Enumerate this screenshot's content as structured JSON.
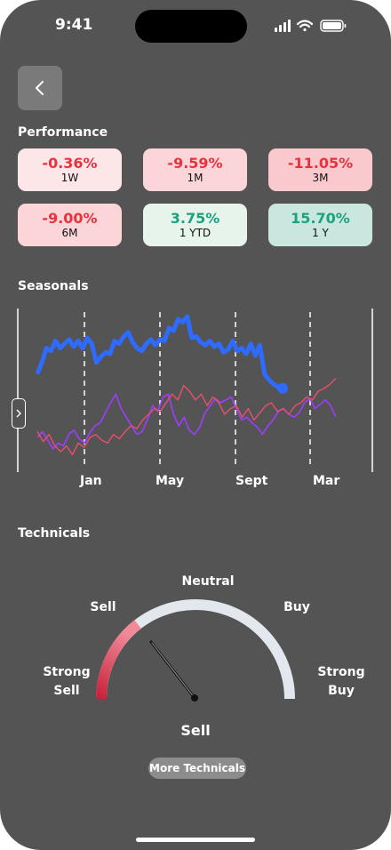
{
  "status_bar": {
    "time": "9:41"
  },
  "performance": {
    "title": "Performance",
    "cards": [
      {
        "value": "-0.36%",
        "label": "1W",
        "tone": "negative"
      },
      {
        "value": "-9.59%",
        "label": "1M",
        "tone": "negative"
      },
      {
        "value": "-11.05%",
        "label": "3M",
        "tone": "negative"
      },
      {
        "value": "-9.00%",
        "label": "6M",
        "tone": "negative"
      },
      {
        "value": "3.75%",
        "label": "1 YTD",
        "tone": "positive"
      },
      {
        "value": "15.70%",
        "label": "1 Y",
        "tone": "positive"
      }
    ]
  },
  "seasonals": {
    "title": "Seasonals",
    "months": [
      "Jan",
      "May",
      "Sept",
      "Mar"
    ]
  },
  "chart_data": {
    "type": "line",
    "title": "Seasonals",
    "xlabel": "",
    "ylabel": "",
    "x_ticks": [
      "Jan",
      "May",
      "Sept",
      "Mar"
    ],
    "grid": "vertical dashed at month ticks",
    "series": [
      {
        "color": "#2f6bff",
        "values": [
          12,
          20,
          30,
          28,
          35,
          30,
          33,
          36,
          31,
          35,
          30,
          37,
          33,
          20,
          24,
          27,
          26,
          35,
          33,
          38,
          41,
          34,
          30,
          28,
          33,
          36,
          32,
          36,
          35,
          44,
          42,
          50,
          48,
          52,
          37,
          38,
          34,
          32,
          35,
          31,
          33,
          27,
          29,
          35,
          28,
          30,
          26,
          33,
          25,
          32,
          12,
          8,
          5,
          3,
          2
        ]
      },
      {
        "color": "#a03cff",
        "values": [
          -32,
          -28,
          -34,
          -40,
          -36,
          -38,
          -30,
          -27,
          -33,
          -36,
          -29,
          -24,
          -22,
          -15,
          -8,
          -2,
          -12,
          -18,
          -24,
          -30,
          -28,
          -20,
          -10,
          -14,
          -4,
          -2,
          -16,
          -24,
          -18,
          -27,
          -30,
          -25,
          -15,
          -10,
          -5,
          -8,
          -6,
          -4,
          -12,
          -20,
          -18,
          -22,
          -25,
          -30,
          -24,
          -20,
          -14,
          -12,
          -16,
          -18,
          -15,
          -8,
          -5,
          -12,
          -9,
          -6,
          -10,
          -18
        ]
      },
      {
        "color": "#e8506e",
        "values": [
          -28,
          -35,
          -30,
          -38,
          -42,
          -38,
          -44,
          -36,
          -39,
          -32,
          -30,
          -34,
          -36,
          -30,
          -33,
          -28,
          -24,
          -26,
          -20,
          -16,
          -12,
          -14,
          -8,
          -2,
          -6,
          4,
          0,
          -6,
          -2,
          -10,
          -4,
          -8,
          -16,
          -12,
          -10,
          -18,
          -12,
          -20,
          -15,
          -10,
          -8,
          -14,
          -12,
          -16,
          -10,
          -8,
          -4,
          -6,
          0,
          2,
          5,
          9
        ]
      }
    ]
  },
  "technicals": {
    "title": "Technicals",
    "labels": {
      "neutral": "Neutral",
      "sell": "Sell",
      "buy": "Buy",
      "strong_sell_1": "Strong",
      "strong_sell_2": "Sell",
      "strong_buy_1": "Strong",
      "strong_buy_2": "Buy"
    },
    "result": "Sell",
    "needle_value": "Sell",
    "more_button": "More Technicals"
  },
  "colors": {
    "background": "#545454",
    "negative_text": "#e8323e",
    "positive_text": "#1aa37f",
    "gauge_track": "#e3e7ee",
    "gauge_sell": "#e0435a"
  }
}
